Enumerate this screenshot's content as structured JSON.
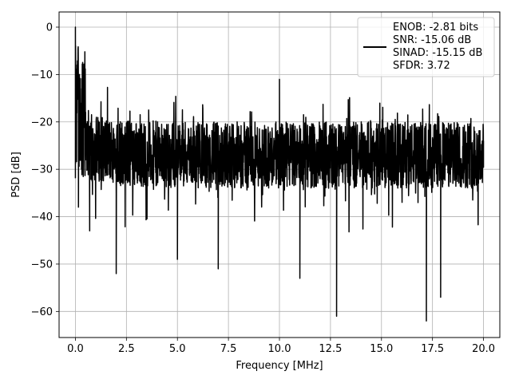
{
  "chart_data": {
    "type": "line",
    "xlabel": "Frequency [MHz]",
    "ylabel": "PSD [dB]",
    "xlim": [
      -0.8,
      20.8
    ],
    "ylim": [
      -65.5,
      3.2
    ],
    "xticks": [
      0.0,
      2.5,
      5.0,
      7.5,
      10.0,
      12.5,
      15.0,
      17.5,
      20.0
    ],
    "xtick_labels": [
      "0.0",
      "2.5",
      "5.0",
      "7.5",
      "10.0",
      "12.5",
      "15.0",
      "17.5",
      "20.0"
    ],
    "yticks": [
      0,
      -10,
      -20,
      -30,
      -40,
      -50,
      -60
    ],
    "ytick_labels": [
      "0",
      "−10",
      "−20",
      "−30",
      "−40",
      "−50",
      "−60"
    ],
    "grid": true,
    "legend_position": "upper-right",
    "legend_entries": [
      "ENOB: -2.81 bits",
      "SNR: -15.06 dB",
      "SINAD: -15.15 dB",
      "SFDR: 3.72"
    ],
    "line_color": "#000000",
    "series": [
      {
        "x": [
          0.0,
          0.01,
          0.02,
          0.03,
          0.05,
          0.08,
          0.1,
          0.15,
          0.2,
          0.3,
          0.4,
          0.5,
          0.7,
          1.0,
          1.5,
          2.0,
          2.5,
          3.0,
          4.0,
          5.0,
          6.0,
          7.0,
          8.0,
          9.0,
          10.0,
          11.0,
          12.0,
          12.8,
          13.0,
          14.0,
          15.0,
          16.0,
          17.0,
          17.2,
          17.9,
          18.5,
          19.0,
          19.5,
          20.0
        ],
        "y": [
          0.0,
          -4.0,
          -9.0,
          -15.0,
          -26.0,
          -8.0,
          -12.0,
          -38.0,
          -10.0,
          -30.0,
          -9.5,
          -22.0,
          -43.0,
          -30.0,
          -25.0,
          -52.0,
          -22.0,
          -28.0,
          -25.0,
          -49.0,
          -26.0,
          -51.0,
          -25.0,
          -30.0,
          -11.0,
          -53.0,
          -28.0,
          -61.0,
          -25.0,
          -30.0,
          -26.0,
          -32.0,
          -28.0,
          -62.0,
          -57.0,
          -28.0,
          -30.0,
          -29.0,
          -24.0
        ]
      }
    ]
  }
}
